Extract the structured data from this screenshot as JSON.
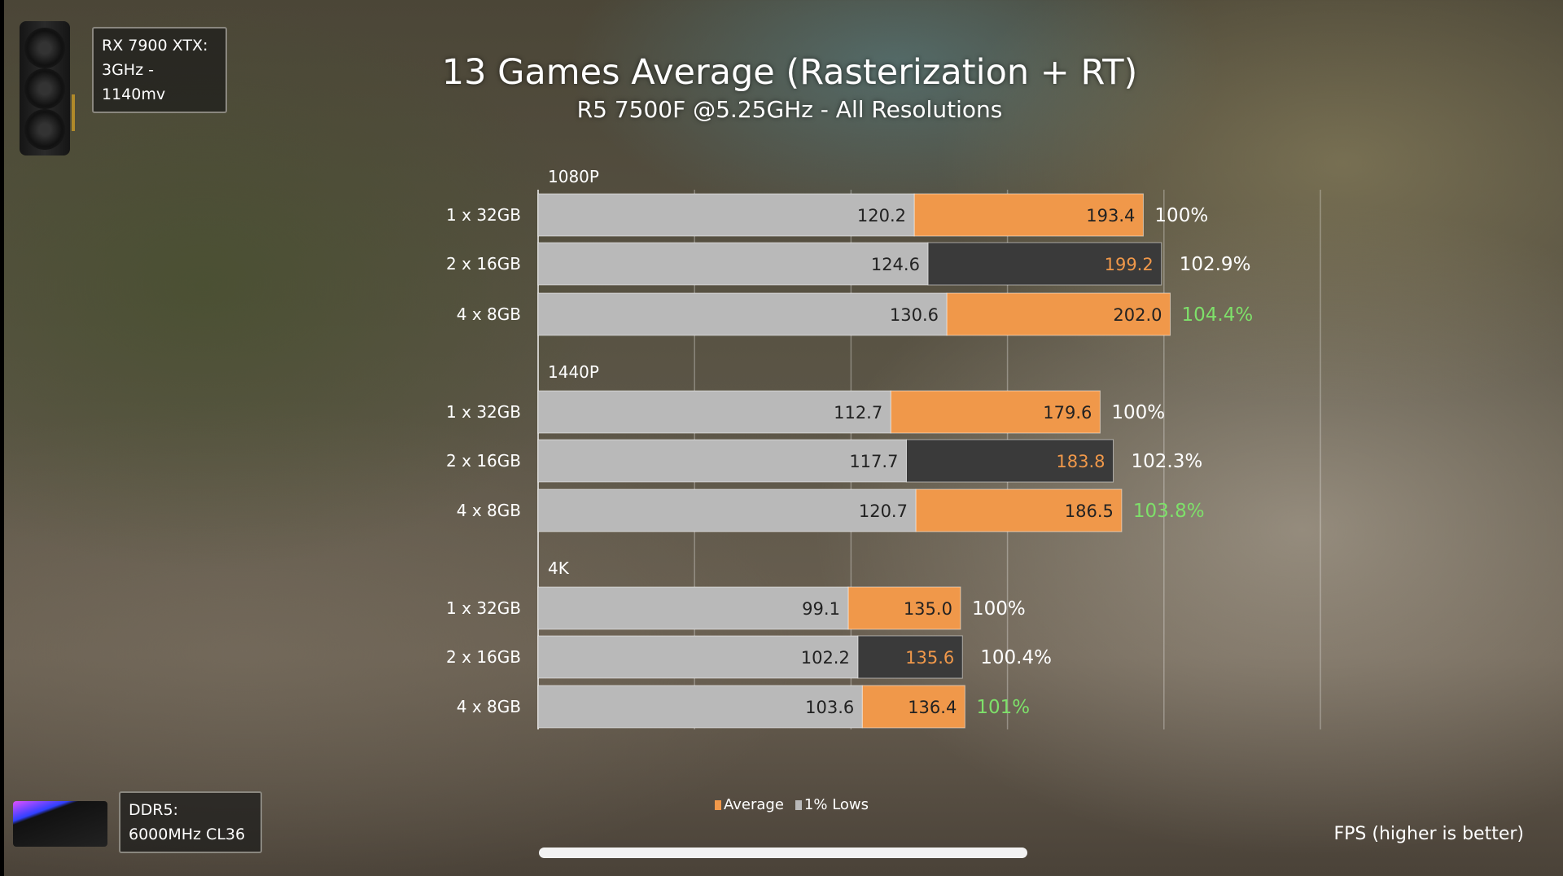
{
  "title": "13 Games Average (Rasterization + RT)",
  "subtitle": "R5 7500F @5.25GHz - All Resolutions",
  "gpu_box": {
    "line1": "RX 7900 XTX:",
    "line2": "3GHz - 1140mv"
  },
  "ram_box": {
    "line1": "DDR5:",
    "line2": "6000MHz CL36"
  },
  "footer_note": "FPS (higher is better)",
  "colors": {
    "average": "#f0984a",
    "lows": "#b9b9b9",
    "average_dark": "#3a3a3a",
    "highlight_text": "#f0984a",
    "green": "#7ee06a"
  },
  "chart_data": {
    "type": "bar",
    "orientation": "horizontal",
    "stacked_overlay": true,
    "xlim": [
      0,
      250
    ],
    "grid": true,
    "gridlines": [
      50,
      100,
      150,
      200,
      250
    ],
    "legend": {
      "position": "bottom",
      "entries": [
        "Average",
        "1% Lows"
      ]
    },
    "groups": [
      {
        "label": "1080P",
        "rows": [
          {
            "label": "1 x 32GB",
            "lows": 120.2,
            "average": 193.4,
            "average_text": "193.4",
            "relative": "100%",
            "relative_color": "white",
            "highlighted": false
          },
          {
            "label": "2 x 16GB",
            "lows": 124.6,
            "average": 199.2,
            "average_text": "199.2",
            "relative": "102.9%",
            "relative_color": "white",
            "highlighted": true
          },
          {
            "label": "4 x 8GB",
            "lows": 130.6,
            "average": 202.0,
            "average_text": "202.0",
            "relative": "104.4%",
            "relative_color": "green",
            "highlighted": false
          }
        ]
      },
      {
        "label": "1440P",
        "rows": [
          {
            "label": "1 x 32GB",
            "lows": 112.7,
            "average": 179.6,
            "average_text": "179.6",
            "relative": "100%",
            "relative_color": "white",
            "highlighted": false
          },
          {
            "label": "2 x 16GB",
            "lows": 117.7,
            "average": 183.8,
            "average_text": "183.8",
            "relative": "102.3%",
            "relative_color": "white",
            "highlighted": true
          },
          {
            "label": "4 x 8GB",
            "lows": 120.7,
            "average": 186.5,
            "average_text": "186.5",
            "relative": "103.8%",
            "relative_color": "green",
            "highlighted": false
          }
        ]
      },
      {
        "label": "4K",
        "rows": [
          {
            "label": "1 x 32GB",
            "lows": 99.1,
            "average": 135.0,
            "average_text": "135.0",
            "relative": "100%",
            "relative_color": "white",
            "highlighted": false
          },
          {
            "label": "2 x 16GB",
            "lows": 102.2,
            "average": 135.6,
            "average_text": "135.6",
            "relative": "100.4%",
            "relative_color": "white",
            "highlighted": true
          },
          {
            "label": "4 x 8GB",
            "lows": 103.6,
            "average": 136.4,
            "average_text": "136.4",
            "relative": "101%",
            "relative_color": "green",
            "highlighted": false
          }
        ]
      }
    ]
  }
}
